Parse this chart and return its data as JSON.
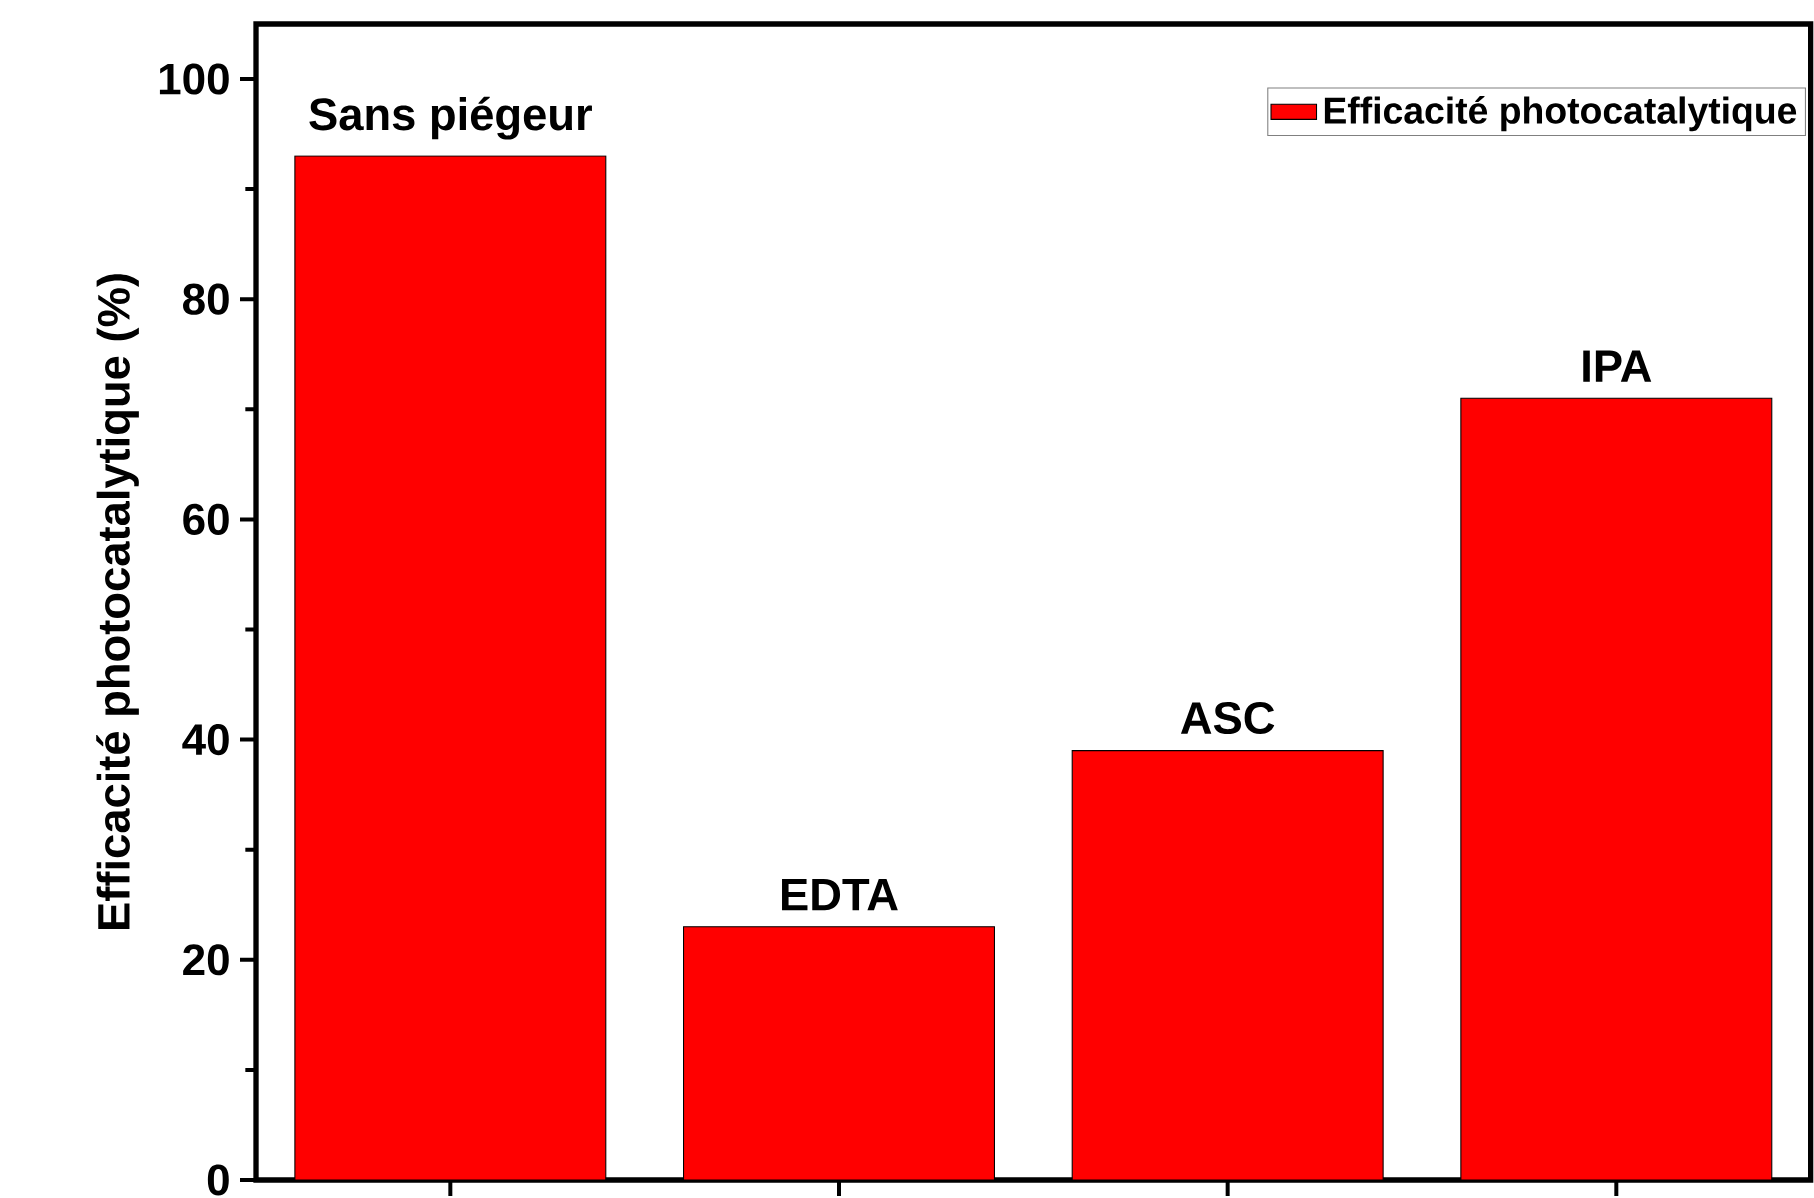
{
  "chart_data": {
    "type": "bar",
    "ylabel": "Efficacité photocatalytique (%)",
    "categories": [
      "Sans piégeur",
      "EDTA",
      "ASC",
      "IPA"
    ],
    "series": [
      {
        "name": "Efficacité photocatalytique",
        "color": "#ff0000",
        "values": [
          93,
          23,
          39,
          71
        ]
      }
    ],
    "ylim": [
      0,
      105
    ],
    "yticks": [
      0,
      20,
      40,
      60,
      80,
      100
    ],
    "legend": "top right",
    "grid": false
  }
}
